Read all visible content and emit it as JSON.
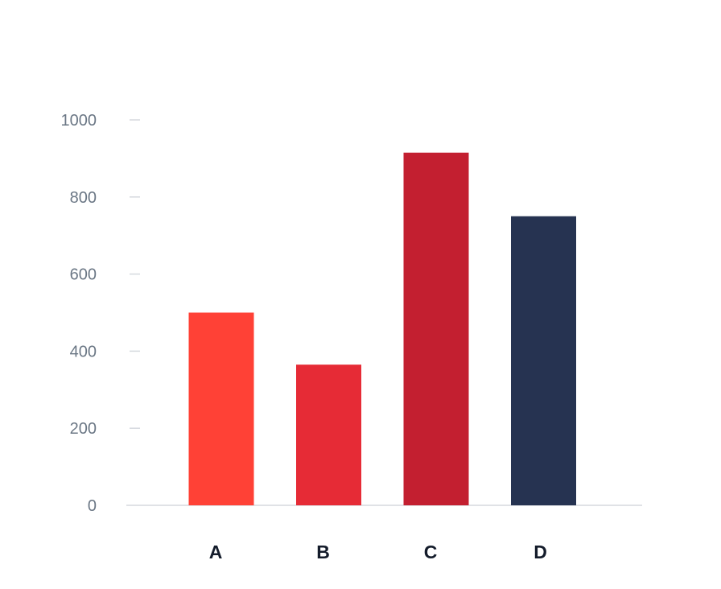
{
  "chart_data": {
    "type": "bar",
    "title": "",
    "xlabel": "",
    "ylabel": "",
    "categories": [
      "A",
      "B",
      "C",
      "D"
    ],
    "values": [
      500,
      365,
      915,
      750
    ],
    "colors": [
      "#ff4136",
      "#e62b36",
      "#c31f30",
      "#263351"
    ],
    "ylim": [
      0,
      1000
    ],
    "yticks": [
      "0",
      "200",
      "400",
      "600",
      "800",
      "1000"
    ],
    "grid": false,
    "legend": "none",
    "axis_color": "#d5d9de",
    "tick_label_color": "#6b7785",
    "category_label_color": "#141c2b"
  }
}
